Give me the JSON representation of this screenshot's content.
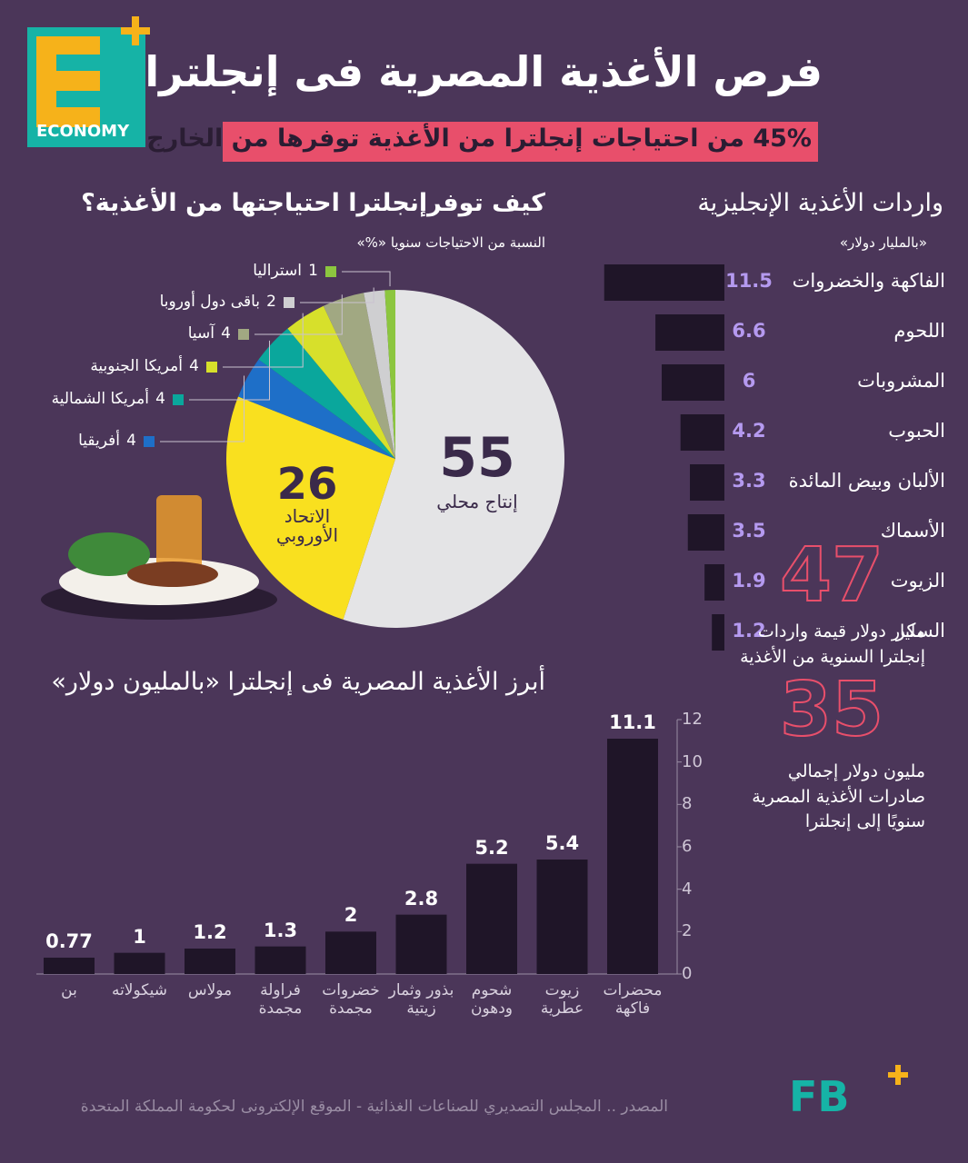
{
  "header": {
    "title": "فرص الأغذية المصرية فى إنجلترا",
    "subtitle": "45% من احتياجات إنجلترا من الأغذية توفرها من الخارج",
    "logo": "ECONOMY"
  },
  "chart_data": [
    {
      "type": "pie",
      "title": "كيف توفرإنجلترا احتياجتها من الأغذية؟",
      "subtitle": "النسبة من الاحتياجات سنويا «%»",
      "categories": [
        "إنتاج محلي",
        "الاتحاد\nالأوروبي",
        "أفريقيا",
        "أمريكا الشمالية",
        "أمريكا الجنوبية",
        "آسيا",
        "باقى دول أوروبا",
        "استراليا"
      ],
      "values": [
        55,
        26,
        4,
        4,
        4,
        4,
        2,
        1
      ],
      "colors": [
        "#e4e4e6",
        "#f9e01f",
        "#1e6fc8",
        "#0aa79c",
        "#d7e02b",
        "#a1a882",
        "#cfcfd1",
        "#8cc63f"
      ]
    },
    {
      "type": "bar",
      "orientation": "horizontal",
      "title": "واردات الأغذية الإنجليزية",
      "subtitle": "«بالمليار دولار»",
      "categories": [
        "الفاكهة والخضروات",
        "اللحوم",
        "المشروبات",
        "الحبوب",
        "الألبان وبيض المائدة",
        "الأسماك",
        "الزيوت",
        "السكر"
      ],
      "values": [
        11.5,
        6.6,
        6,
        4.2,
        3.3,
        3.5,
        1.9,
        1.2
      ],
      "color": "#1f1528"
    },
    {
      "type": "bar",
      "title": "أبرز الأغذية المصرية فى إنجلترا «بالمليون دولار»",
      "categories": [
        "محضرات\nفاكهة",
        "زيوت\nعطرية",
        "شحوم\nودهون",
        "بذور وثمار\nزيتية",
        "خضروات\nمجمدة",
        "فراولة\nمجمدة",
        "مولاس",
        "شيكولاته",
        "بن"
      ],
      "values": [
        11.1,
        5.4,
        5.2,
        2.8,
        2,
        1.3,
        1.2,
        1,
        0.77
      ],
      "color": "#1f1528",
      "ylim": [
        0,
        12
      ],
      "yticks": [
        0,
        2,
        4,
        6,
        8,
        10,
        12
      ]
    }
  ],
  "stats": [
    {
      "value": 47,
      "text": "مليار دولار قيمة واردات\nإنجلترا السنوية من الأغذية"
    },
    {
      "value": 35,
      "text": "مليون دولار إجمالي\nصادرات الأغذية المصرية\nسنويًا إلى إنجلترا"
    }
  ],
  "footer": {
    "source": "المصدر .. المجلس التصديري للصناعات الغذائية - الموقع الإلكترونى لحكومة المملكة المتحدة",
    "logo": "FB"
  }
}
